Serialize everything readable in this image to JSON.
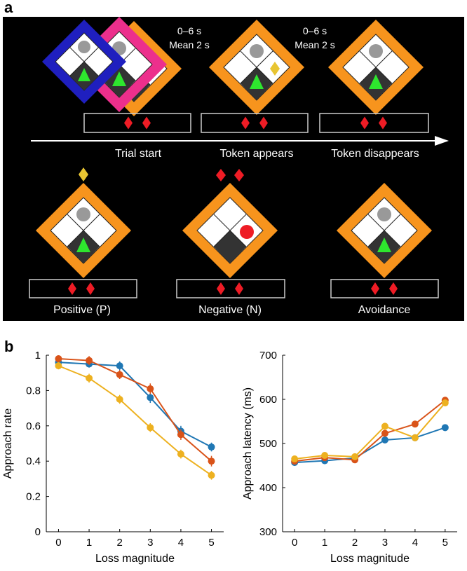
{
  "panel_a": {
    "letter": "a",
    "timing1": [
      "0–6 s",
      "Mean 2 s"
    ],
    "timing2": [
      "0–6 s",
      "Mean 2 s"
    ],
    "events": [
      "Trial start",
      "Token appears",
      "Token disappears"
    ],
    "outcomes": [
      "Positive (P)",
      "Negative (N)",
      "Avoidance"
    ],
    "colors": {
      "background": "#000000",
      "frame_orange": "#F7941D",
      "frame_pink": "#EC2F8C",
      "frame_blue": "#1F1FBF",
      "token": "#E8C532",
      "diamond_red": "#EE1C25",
      "triangle_green": "#2EE62E",
      "circle_gray": "#999999",
      "circle_red": "#EE1C25"
    }
  },
  "panel_b": {
    "letter": "b",
    "colors": [
      "#1F77B4",
      "#D95319",
      "#EDB120"
    ],
    "chart_data": [
      {
        "type": "line",
        "x": [
          0,
          1,
          2,
          3,
          4,
          5
        ],
        "xlabel": "Loss magnitude",
        "ylabel": "Approach rate",
        "xlim": [
          -0.4,
          5.4
        ],
        "ylim": [
          0,
          1
        ],
        "yticks": [
          "0",
          "0.2",
          "0.4",
          "0.6",
          "0.8",
          "1"
        ],
        "xticks": [
          "0",
          "1",
          "2",
          "3",
          "4",
          "5"
        ],
        "series": [
          {
            "values": [
              0.96,
              0.95,
              0.94,
              0.76,
              0.57,
              0.48
            ],
            "err": [
              0.02,
              0.02,
              0.025,
              0.03,
              0.03,
              0.025
            ]
          },
          {
            "values": [
              0.98,
              0.97,
              0.89,
              0.81,
              0.55,
              0.4
            ],
            "err": [
              0.02,
              0.025,
              0.025,
              0.03,
              0.03,
              0.03
            ]
          },
          {
            "values": [
              0.94,
              0.87,
              0.75,
              0.59,
              0.44,
              0.32
            ],
            "err": [
              0.02,
              0.025,
              0.025,
              0.025,
              0.025,
              0.025
            ]
          }
        ]
      },
      {
        "type": "line",
        "x": [
          0,
          1,
          2,
          3,
          4,
          5
        ],
        "xlabel": "Loss magnitude",
        "ylabel": "Approach latency (ms)",
        "xlim": [
          -0.4,
          5.4
        ],
        "ylim": [
          300,
          700
        ],
        "yticks": [
          "300",
          "400",
          "500",
          "600",
          "700"
        ],
        "xticks": [
          "0",
          "1",
          "2",
          "3",
          "4",
          "5"
        ],
        "series": [
          {
            "values": [
              457,
              461,
              467,
              508,
              513,
              536
            ]
          },
          {
            "values": [
              460,
              468,
              463,
              523,
              544,
              598
            ]
          },
          {
            "values": [
              465,
              473,
              470,
              539,
              513,
              592
            ]
          }
        ]
      }
    ]
  }
}
